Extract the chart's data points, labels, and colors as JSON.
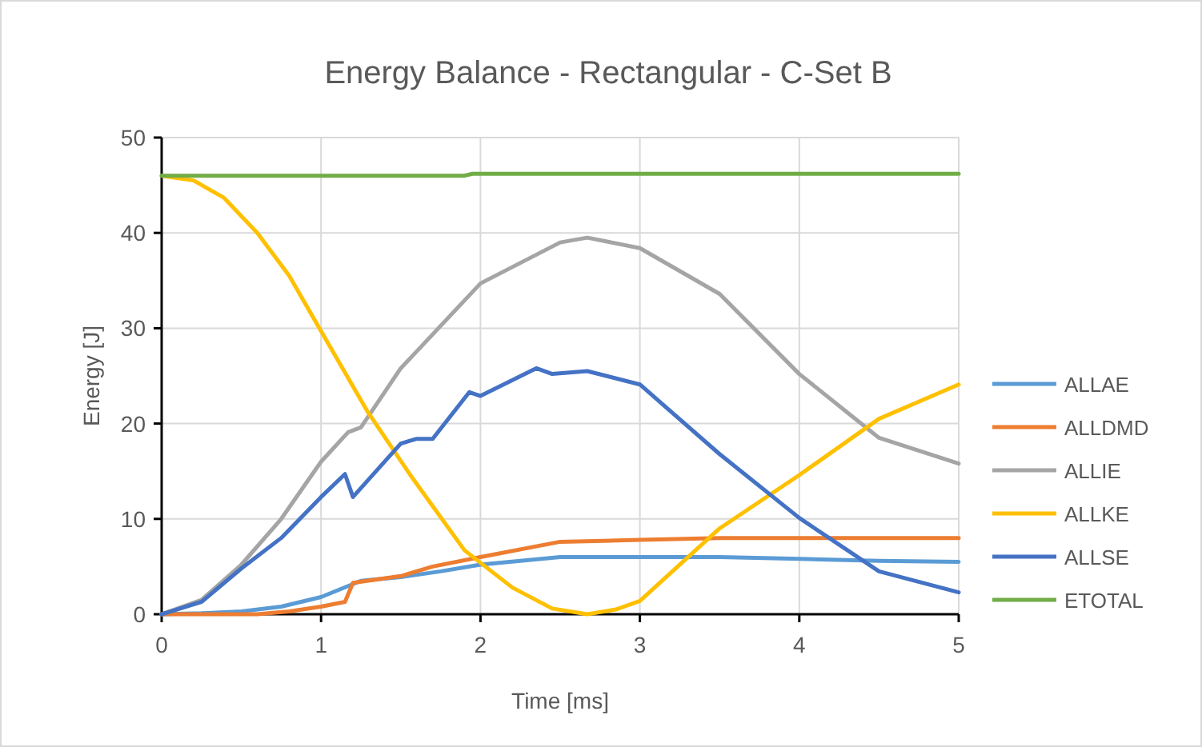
{
  "chart_data": {
    "type": "line",
    "title": "Energy Balance - Rectangular - C-Set B",
    "xlabel": "Time [ms]",
    "ylabel": "Energy [J]",
    "xlim": [
      0,
      5
    ],
    "xticks": [
      0,
      1,
      2,
      3,
      4,
      5
    ],
    "ylim": [
      0,
      50
    ],
    "yticks": [
      0,
      10,
      20,
      30,
      40,
      50
    ],
    "grid": true,
    "legend": "right",
    "marker": "none",
    "line_style": "solid",
    "series": [
      {
        "name": "ALLAE",
        "color": "#5b9bd5",
        "x": [
          0,
          0.25,
          0.5,
          0.75,
          1,
          1.25,
          1.5,
          1.75,
          2,
          2.5,
          3,
          3.5,
          4,
          4.5,
          5
        ],
        "values": [
          0,
          0.1,
          0.3,
          0.8,
          1.8,
          3.5,
          3.9,
          4.5,
          5.2,
          6,
          6,
          6,
          5.8,
          5.6,
          5.5
        ]
      },
      {
        "name": "ALLDMD",
        "color": "#ed7d31",
        "x": [
          0,
          0.6,
          0.8,
          1,
          1.15,
          1.2,
          1.5,
          1.7,
          2,
          2.5,
          3,
          3.5,
          4,
          5
        ],
        "values": [
          0,
          0,
          0.3,
          0.8,
          1.3,
          3.3,
          4,
          5,
          6,
          7.6,
          7.8,
          8,
          8,
          8
        ]
      },
      {
        "name": "ALLIE",
        "color": "#a5a5a5",
        "x": [
          0,
          0.25,
          0.5,
          0.75,
          1,
          1.17,
          1.25,
          1.5,
          2,
          2.5,
          2.67,
          3,
          3.5,
          4,
          4.5,
          5
        ],
        "values": [
          0,
          1.5,
          5.2,
          10,
          16,
          19.1,
          19.6,
          25.8,
          34.7,
          39,
          39.5,
          38.4,
          33.6,
          25.2,
          18.5,
          15.8
        ]
      },
      {
        "name": "ALLKE",
        "color": "#ffc000",
        "x": [
          0,
          0.2,
          0.39,
          0.6,
          0.8,
          1,
          1.29,
          1.56,
          1.9,
          2.2,
          2.45,
          2.67,
          2.85,
          3,
          3.5,
          4,
          4.5,
          5
        ],
        "values": [
          46,
          45.5,
          43.7,
          40,
          35.5,
          29.7,
          21.3,
          14.6,
          6.7,
          2.8,
          0.6,
          0,
          0.5,
          1.4,
          9,
          14.6,
          20.5,
          24.1
        ]
      },
      {
        "name": "ALLSE",
        "color": "#4472c4",
        "x": [
          0,
          0.25,
          0.5,
          0.75,
          1,
          1.15,
          1.2,
          1.5,
          1.6,
          1.7,
          1.93,
          2,
          2.35,
          2.45,
          2.67,
          3,
          3.5,
          4,
          4.5,
          5
        ],
        "values": [
          0,
          1.3,
          4.8,
          8,
          12.3,
          14.7,
          12.3,
          17.9,
          18.4,
          18.4,
          23.3,
          22.9,
          25.8,
          25.2,
          25.5,
          24.1,
          16.8,
          10.1,
          4.5,
          2.3
        ]
      },
      {
        "name": "ETOTAL",
        "color": "#70ad47",
        "x": [
          0,
          1.9,
          1.95,
          5
        ],
        "values": [
          46,
          46,
          46.2,
          46.2
        ]
      }
    ]
  }
}
